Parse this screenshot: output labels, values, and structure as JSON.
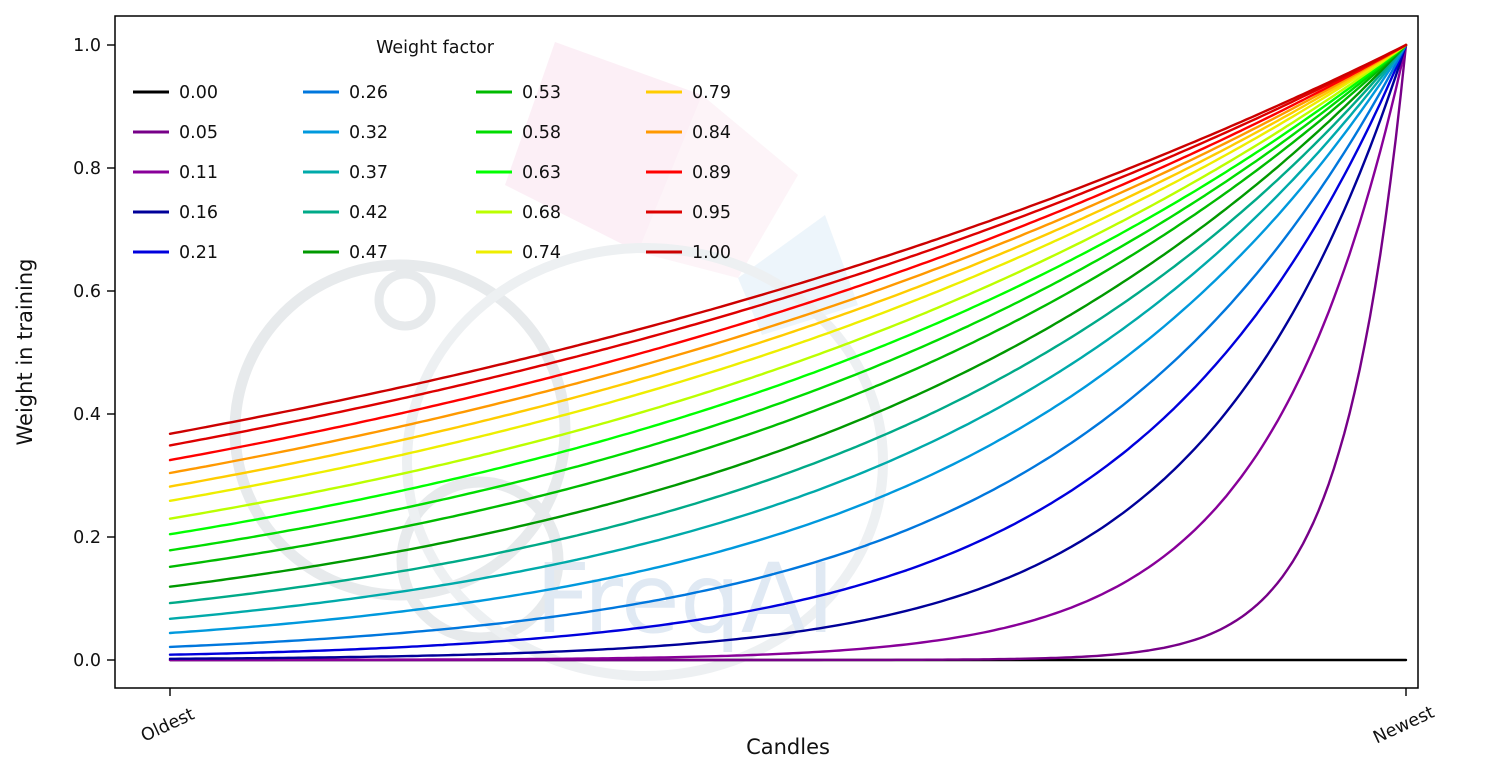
{
  "figure": {
    "background": "#ffffff"
  },
  "chart_data": {
    "type": "line",
    "title": "",
    "xlabel": "Candles",
    "ylabel": "Weight in training",
    "xtick_labels": [
      "Oldest",
      "Newest"
    ],
    "xtick_positions": [
      0,
      1
    ],
    "ytick_labels": [
      "0.0",
      "0.2",
      "0.4",
      "0.6",
      "0.8",
      "1.0"
    ],
    "ytick_values": [
      0,
      0.2,
      0.4,
      0.6,
      0.8,
      1.0
    ],
    "xlim": [
      0,
      1
    ],
    "ylim": [
      0,
      1
    ],
    "grid": false,
    "legend": {
      "title": "Weight factor",
      "columns": 4,
      "rows": 5,
      "position": "upper left",
      "order": "column-major"
    },
    "curve_formula": "weight(x) = exp(-(1 - x) / weight_factor), x from 0 at Oldest to 1 at Newest; weight_factor 0 gives flat 0",
    "series": [
      {
        "label": "0.00",
        "weight_factor": 0.0,
        "color": "#000000"
      },
      {
        "label": "0.05",
        "weight_factor": 0.05,
        "color": "#770088"
      },
      {
        "label": "0.11",
        "weight_factor": 0.11,
        "color": "#880099"
      },
      {
        "label": "0.16",
        "weight_factor": 0.16,
        "color": "#000099"
      },
      {
        "label": "0.21",
        "weight_factor": 0.21,
        "color": "#0000dd"
      },
      {
        "label": "0.26",
        "weight_factor": 0.26,
        "color": "#0077dd"
      },
      {
        "label": "0.32",
        "weight_factor": 0.32,
        "color": "#0099dd"
      },
      {
        "label": "0.37",
        "weight_factor": 0.37,
        "color": "#00aaaa"
      },
      {
        "label": "0.42",
        "weight_factor": 0.42,
        "color": "#00aa88"
      },
      {
        "label": "0.47",
        "weight_factor": 0.47,
        "color": "#009900"
      },
      {
        "label": "0.53",
        "weight_factor": 0.53,
        "color": "#00bb00"
      },
      {
        "label": "0.58",
        "weight_factor": 0.58,
        "color": "#00dd00"
      },
      {
        "label": "0.63",
        "weight_factor": 0.63,
        "color": "#00ff00"
      },
      {
        "label": "0.68",
        "weight_factor": 0.68,
        "color": "#bbff00"
      },
      {
        "label": "0.74",
        "weight_factor": 0.74,
        "color": "#eeee00"
      },
      {
        "label": "0.79",
        "weight_factor": 0.79,
        "color": "#ffcc00"
      },
      {
        "label": "0.84",
        "weight_factor": 0.84,
        "color": "#ff9900"
      },
      {
        "label": "0.89",
        "weight_factor": 0.89,
        "color": "#ff0000"
      },
      {
        "label": "0.95",
        "weight_factor": 0.95,
        "color": "#dd0000"
      },
      {
        "label": "1.00",
        "weight_factor": 1.0,
        "color": "#cc0000"
      }
    ],
    "watermark": "FreqAI"
  }
}
